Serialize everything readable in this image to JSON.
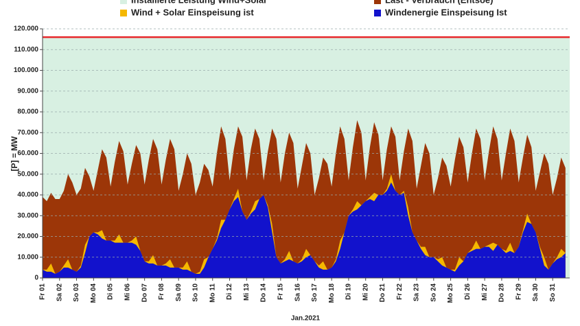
{
  "chart_data": {
    "type": "area",
    "y_label": "[P] = MW",
    "x_label": "Jan.2021",
    "xlim": [
      1,
      32
    ],
    "ylim": [
      0,
      120000
    ],
    "yticks": [
      0,
      {
        "value": 10000,
        "label": "10.000"
      },
      {
        "value": 20000,
        "label": "20.000"
      },
      {
        "value": 30000,
        "label": "30.000"
      },
      {
        "value": 40000,
        "label": "40.000"
      },
      {
        "value": 50000,
        "label": "50.000"
      },
      {
        "value": 60000,
        "label": "60.000"
      },
      {
        "value": 70000,
        "label": "70.000"
      },
      {
        "value": 80000,
        "label": "80.000"
      },
      {
        "value": 90000,
        "label": "90.000"
      },
      {
        "value": 100000,
        "label": "100.000"
      },
      {
        "value": 110000,
        "label": "110.000"
      },
      {
        "value": 120000,
        "label": "120.000"
      }
    ],
    "xticks": [
      {
        "value": 1,
        "label": "Fr 01"
      },
      {
        "value": 2,
        "label": "Sa 02"
      },
      {
        "value": 3,
        "label": "So 03"
      },
      {
        "value": 4,
        "label": "Mo 04"
      },
      {
        "value": 5,
        "label": "Di 05"
      },
      {
        "value": 6,
        "label": "Mi 06"
      },
      {
        "value": 7,
        "label": "Do 07"
      },
      {
        "value": 8,
        "label": "Fr 08"
      },
      {
        "value": 9,
        "label": "Sa 09"
      },
      {
        "value": 10,
        "label": "So 10"
      },
      {
        "value": 11,
        "label": "Mo 11"
      },
      {
        "value": 12,
        "label": "Di 12"
      },
      {
        "value": 13,
        "label": "Mi 13"
      },
      {
        "value": 14,
        "label": "Do 14"
      },
      {
        "value": 15,
        "label": "Fr 15"
      },
      {
        "value": 16,
        "label": "Sa 16"
      },
      {
        "value": 17,
        "label": "So 17"
      },
      {
        "value": 18,
        "label": "Mo 18"
      },
      {
        "value": 19,
        "label": "Di 19"
      },
      {
        "value": 20,
        "label": "Mi 20"
      },
      {
        "value": 21,
        "label": "Do 21"
      },
      {
        "value": 22,
        "label": "Fr 22"
      },
      {
        "value": 23,
        "label": "Sa 23"
      },
      {
        "value": 24,
        "label": "So 24"
      },
      {
        "value": 25,
        "label": "Mo 25"
      },
      {
        "value": 26,
        "label": "Di 26"
      },
      {
        "value": 27,
        "label": "Mi 27"
      },
      {
        "value": 28,
        "label": "Do 28"
      },
      {
        "value": 29,
        "label": "Fr 29"
      },
      {
        "value": 30,
        "label": "Sa 30"
      },
      {
        "value": 31,
        "label": "So 31"
      }
    ],
    "grid": true,
    "x": [
      1,
      1.25,
      1.5,
      1.75,
      2,
      2.25,
      2.5,
      2.75,
      3,
      3.25,
      3.5,
      3.75,
      4,
      4.25,
      4.5,
      4.75,
      5,
      5.25,
      5.5,
      5.75,
      6,
      6.25,
      6.5,
      6.75,
      7,
      7.25,
      7.5,
      7.75,
      8,
      8.25,
      8.5,
      8.75,
      9,
      9.25,
      9.5,
      9.75,
      10,
      10.25,
      10.5,
      10.75,
      11,
      11.25,
      11.5,
      11.75,
      12,
      12.25,
      12.5,
      12.75,
      13,
      13.25,
      13.5,
      13.75,
      14,
      14.25,
      14.5,
      14.75,
      15,
      15.25,
      15.5,
      15.75,
      16,
      16.25,
      16.5,
      16.75,
      17,
      17.25,
      17.5,
      17.75,
      18,
      18.25,
      18.5,
      18.75,
      19,
      19.25,
      19.5,
      19.75,
      20,
      20.25,
      20.5,
      20.75,
      21,
      21.25,
      21.5,
      21.75,
      22,
      22.25,
      22.5,
      22.75,
      23,
      23.25,
      23.5,
      23.75,
      24,
      24.25,
      24.5,
      24.75,
      25,
      25.25,
      25.5,
      25.75,
      26,
      26.25,
      26.5,
      26.75,
      27,
      27.25,
      27.5,
      27.75,
      28,
      28.25,
      28.5,
      28.75,
      29,
      29.25,
      29.5,
      29.75,
      30,
      30.25,
      30.5,
      30.75,
      31,
      31.25,
      31.5,
      31.75
    ],
    "series": [
      {
        "name": "Installierte Leistung Wind+Solar",
        "color": "#d8f0e2",
        "line_color": "#e8262a",
        "x": [
          1,
          32
        ],
        "values": [
          116000,
          116000
        ]
      },
      {
        "name": "Last - Verbrauch (Entsoe)",
        "color": "#9c3608",
        "values": [
          39000,
          37000,
          41000,
          38000,
          38000,
          42000,
          50000,
          46000,
          40000,
          43000,
          53000,
          49000,
          42000,
          52000,
          62000,
          58000,
          44000,
          56000,
          66000,
          61000,
          45000,
          55000,
          64000,
          60000,
          45000,
          57000,
          67000,
          62000,
          45000,
          57000,
          67000,
          62000,
          42000,
          50000,
          60000,
          55000,
          40000,
          46000,
          55000,
          52000,
          44000,
          60000,
          73000,
          67000,
          47000,
          62000,
          73000,
          68000,
          47000,
          62000,
          72000,
          67000,
          47000,
          61000,
          72000,
          67000,
          46000,
          60000,
          70000,
          65000,
          43000,
          54000,
          65000,
          60000,
          40000,
          48000,
          58000,
          55000,
          44000,
          60000,
          73000,
          67000,
          47000,
          63000,
          76000,
          70000,
          47000,
          63000,
          75000,
          69000,
          47000,
          62000,
          73000,
          68000,
          47000,
          61000,
          72000,
          66000,
          43000,
          54000,
          65000,
          60000,
          40000,
          48000,
          58000,
          54000,
          44000,
          57000,
          68000,
          63000,
          46000,
          60000,
          72000,
          67000,
          47000,
          61000,
          73000,
          67000,
          47000,
          60000,
          72000,
          66000,
          46000,
          58000,
          69000,
          63000,
          42000,
          51000,
          60000,
          55000,
          40000,
          48000,
          58000,
          53000
        ]
      },
      {
        "name": "Wind + Solar Einspeisung ist",
        "color": "#f5b800",
        "values": [
          4000,
          4000,
          7000,
          2000,
          3000,
          6000,
          9000,
          4000,
          3000,
          6000,
          16000,
          20000,
          22000,
          22000,
          23000,
          18000,
          18000,
          18000,
          21000,
          17000,
          17000,
          18000,
          20000,
          13000,
          8000,
          8000,
          11000,
          6000,
          6000,
          7000,
          9000,
          5000,
          5000,
          5000,
          8000,
          3000,
          2000,
          3000,
          9000,
          10000,
          14000,
          19000,
          28000,
          28000,
          33000,
          38000,
          43000,
          32000,
          28000,
          32000,
          37000,
          38000,
          40000,
          35000,
          26000,
          10000,
          7000,
          9000,
          13000,
          8000,
          7000,
          9000,
          14000,
          11000,
          8000,
          6000,
          8000,
          4000,
          5000,
          9000,
          18000,
          22000,
          30000,
          33000,
          37000,
          35000,
          37000,
          39000,
          41000,
          40000,
          40000,
          43000,
          50000,
          42000,
          40000,
          42000,
          34000,
          22000,
          18000,
          15000,
          15000,
          10000,
          10000,
          9000,
          10000,
          5000,
          4000,
          4000,
          10000,
          8000,
          12000,
          14000,
          18000,
          14000,
          15000,
          16000,
          17000,
          16000,
          14000,
          13000,
          17000,
          12000,
          15000,
          23000,
          31000,
          26000,
          22000,
          15000,
          10000,
          4000,
          7000,
          10000,
          14000,
          12000
        ]
      },
      {
        "name": "Windenergie Einspeisung Ist",
        "color": "#1212cc",
        "values": [
          4000,
          3000,
          3000,
          2000,
          3000,
          5000,
          5000,
          4000,
          3000,
          5000,
          12000,
          20000,
          22000,
          21000,
          19000,
          18000,
          18000,
          17000,
          17000,
          17000,
          17000,
          17000,
          16000,
          13000,
          8000,
          7000,
          7000,
          6000,
          6000,
          6000,
          5000,
          5000,
          5000,
          4000,
          4000,
          3000,
          2000,
          2000,
          5000,
          10000,
          14000,
          18000,
          24000,
          28000,
          33000,
          37000,
          39000,
          32000,
          28000,
          31000,
          33000,
          38000,
          40000,
          34000,
          22000,
          10000,
          7000,
          8000,
          9000,
          8000,
          7000,
          8000,
          10000,
          11000,
          8000,
          5000,
          4000,
          4000,
          5000,
          8000,
          14000,
          22000,
          30000,
          32000,
          33000,
          35000,
          37000,
          38000,
          37000,
          40000,
          40000,
          42000,
          46000,
          42000,
          40000,
          41000,
          30000,
          22000,
          18000,
          14000,
          11000,
          10000,
          10000,
          8000,
          6000,
          5000,
          4000,
          3000,
          6000,
          8000,
          12000,
          13000,
          14000,
          14000,
          15000,
          15000,
          13000,
          16000,
          14000,
          12000,
          13000,
          12000,
          15000,
          22000,
          27000,
          26000,
          22000,
          14000,
          6000,
          4000,
          7000,
          9000,
          10000,
          12000
        ]
      }
    ]
  }
}
